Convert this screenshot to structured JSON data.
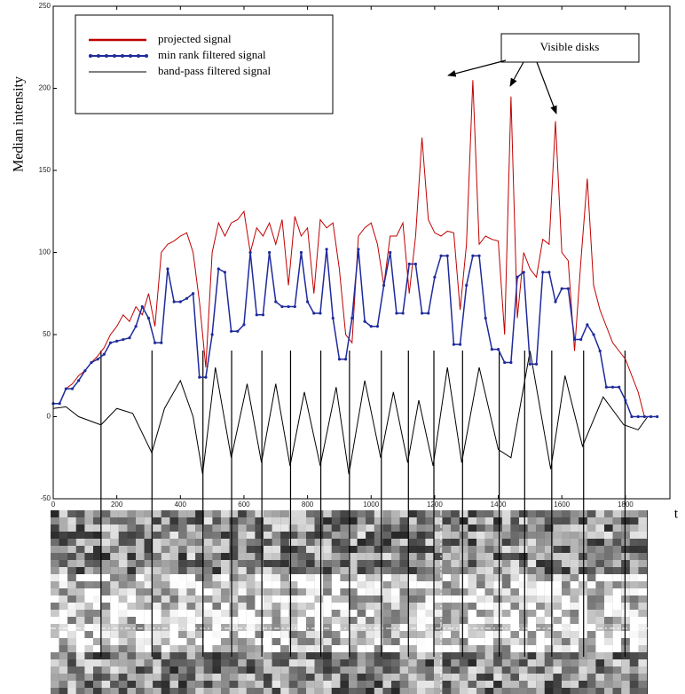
{
  "chart_data": {
    "type": "line",
    "ylabel": "Median intensity",
    "xlabel": "t",
    "annotation": "Visible disks",
    "xlim": [
      0,
      1940
    ],
    "ylim": [
      -50,
      250
    ],
    "xticks": [
      0,
      200,
      400,
      600,
      800,
      1000,
      1200,
      1400,
      1600,
      1800
    ],
    "yticks": [
      -50,
      0,
      50,
      100,
      150,
      200,
      250
    ],
    "series": [
      {
        "name": "projected signal",
        "color": "#c00000",
        "x": [
          0,
          20,
          40,
          60,
          80,
          100,
          120,
          140,
          160,
          180,
          200,
          220,
          240,
          260,
          280,
          300,
          320,
          340,
          360,
          380,
          400,
          420,
          440,
          460,
          480,
          500,
          520,
          540,
          560,
          580,
          600,
          620,
          640,
          660,
          680,
          700,
          720,
          740,
          760,
          780,
          800,
          820,
          840,
          860,
          880,
          900,
          920,
          940,
          960,
          980,
          1000,
          1020,
          1040,
          1060,
          1080,
          1100,
          1120,
          1140,
          1160,
          1180,
          1200,
          1220,
          1240,
          1260,
          1280,
          1300,
          1320,
          1340,
          1360,
          1380,
          1400,
          1420,
          1440,
          1460,
          1480,
          1500,
          1520,
          1540,
          1560,
          1580,
          1600,
          1620,
          1640,
          1660,
          1680,
          1700,
          1720,
          1740,
          1760,
          1780,
          1800,
          1820,
          1840,
          1860,
          1880,
          1900
        ],
        "values": [
          8,
          8,
          17,
          20,
          25,
          28,
          33,
          37,
          42,
          50,
          55,
          62,
          58,
          67,
          62,
          75,
          55,
          100,
          105,
          107,
          110,
          112,
          100,
          70,
          30,
          100,
          118,
          110,
          118,
          120,
          125,
          100,
          115,
          110,
          118,
          105,
          120,
          80,
          122,
          110,
          115,
          75,
          120,
          115,
          118,
          90,
          50,
          45,
          110,
          115,
          118,
          105,
          80,
          110,
          110,
          118,
          75,
          110,
          170,
          120,
          112,
          110,
          113,
          112,
          65,
          105,
          205,
          105,
          110,
          108,
          107,
          50,
          195,
          60,
          100,
          90,
          85,
          108,
          105,
          180,
          100,
          95,
          40,
          95,
          145,
          80,
          65,
          55,
          45,
          40,
          35,
          25,
          15,
          0,
          0,
          0
        ]
      },
      {
        "name": "min rank filtered signal",
        "color": "#1f2a9c",
        "x": [
          0,
          20,
          40,
          60,
          80,
          100,
          120,
          140,
          160,
          180,
          200,
          220,
          240,
          260,
          280,
          300,
          320,
          340,
          360,
          380,
          400,
          420,
          440,
          460,
          480,
          500,
          520,
          540,
          560,
          580,
          600,
          620,
          640,
          660,
          680,
          700,
          720,
          740,
          760,
          780,
          800,
          820,
          840,
          860,
          880,
          900,
          920,
          940,
          960,
          980,
          1000,
          1020,
          1040,
          1060,
          1080,
          1100,
          1120,
          1140,
          1160,
          1180,
          1200,
          1220,
          1240,
          1260,
          1280,
          1300,
          1320,
          1340,
          1360,
          1380,
          1400,
          1420,
          1440,
          1460,
          1480,
          1500,
          1520,
          1540,
          1560,
          1580,
          1600,
          1620,
          1640,
          1660,
          1680,
          1700,
          1720,
          1740,
          1760,
          1780,
          1800,
          1820,
          1840,
          1860,
          1880,
          1900
        ],
        "values": [
          8,
          8,
          17,
          17,
          22,
          28,
          33,
          35,
          38,
          45,
          46,
          47,
          48,
          55,
          67,
          60,
          45,
          45,
          90,
          70,
          70,
          72,
          75,
          24,
          24,
          50,
          90,
          88,
          52,
          52,
          56,
          100,
          62,
          62,
          100,
          70,
          67,
          67,
          67,
          100,
          70,
          63,
          63,
          102,
          60,
          35,
          35,
          60,
          102,
          58,
          55,
          55,
          80,
          100,
          63,
          63,
          93,
          93,
          63,
          63,
          85,
          98,
          98,
          44,
          44,
          80,
          98,
          98,
          60,
          41,
          41,
          33,
          33,
          85,
          88,
          32,
          32,
          88,
          88,
          70,
          78,
          78,
          47,
          47,
          56,
          50,
          40,
          18,
          18,
          18,
          10,
          0,
          0,
          0,
          0,
          0
        ]
      },
      {
        "name": "band-pass filtered signal",
        "color": "#000000",
        "x": [
          0,
          40,
          80,
          150,
          200,
          250,
          310,
          350,
          400,
          440,
          470,
          510,
          560,
          610,
          655,
          700,
          745,
          790,
          840,
          890,
          930,
          980,
          1030,
          1070,
          1115,
          1150,
          1195,
          1240,
          1285,
          1340,
          1400,
          1440,
          1500,
          1565,
          1610,
          1665,
          1730,
          1795,
          1840,
          1870
        ],
        "values": [
          5,
          6,
          0,
          -5,
          5,
          2,
          -22,
          5,
          22,
          0,
          -35,
          30,
          -25,
          20,
          -28,
          20,
          -30,
          15,
          -30,
          18,
          -35,
          22,
          -25,
          15,
          -28,
          10,
          -30,
          30,
          -28,
          30,
          -20,
          -25,
          40,
          -32,
          25,
          -18,
          12,
          -5,
          -8,
          0
        ]
      }
    ]
  }
}
